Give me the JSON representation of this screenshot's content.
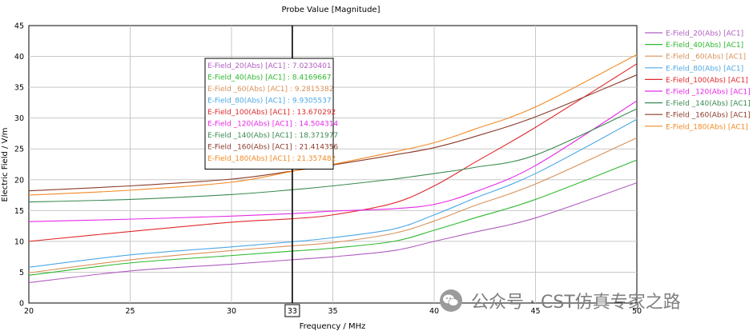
{
  "chart_data": {
    "type": "line",
    "title": "Probe Value [Magnitude]",
    "xlabel": "Frequency / MHz",
    "ylabel": "Electric Field / V/m",
    "xlim": [
      20,
      50
    ],
    "ylim": [
      0,
      45
    ],
    "x_ticks": [
      20,
      25,
      30,
      35,
      40,
      45,
      50
    ],
    "y_ticks": [
      0,
      5,
      10,
      15,
      20,
      25,
      30,
      35,
      40,
      45
    ],
    "grid": true,
    "legend_position": "right",
    "marker": {
      "x": 33,
      "label": "33"
    },
    "x": [
      20,
      25,
      30,
      33,
      35,
      38,
      40,
      42,
      45,
      50
    ],
    "series": [
      {
        "name": "E-Field_20(Abs) [AC1]",
        "color": "#b05cc0",
        "values": [
          3.3,
          5.2,
          6.3,
          7.02,
          7.5,
          8.5,
          10.0,
          11.5,
          13.8,
          19.5
        ],
        "marker_value": "7.0230401"
      },
      {
        "name": "E-Field_40(Abs) [AC1]",
        "color": "#2db82d",
        "values": [
          4.5,
          6.5,
          7.7,
          8.42,
          8.9,
          10.0,
          11.8,
          13.8,
          16.8,
          23.2
        ],
        "marker_value": "8.4169667"
      },
      {
        "name": "E-Field _60(Abs) [AC1]",
        "color": "#d8915a",
        "values": [
          4.9,
          7.0,
          8.5,
          9.28,
          9.8,
          11.3,
          13.3,
          15.8,
          19.3,
          26.8
        ],
        "marker_value": "9.2815382"
      },
      {
        "name": "E-Field_80(Abs) [AC1]",
        "color": "#4ca8e6",
        "values": [
          5.8,
          7.8,
          9.1,
          9.93,
          10.6,
          12.0,
          14.3,
          17.0,
          21.0,
          29.8
        ],
        "marker_value": "9.9305537"
      },
      {
        "name": "E-Field_100(Abs) [AC1]",
        "color": "#e0282a",
        "values": [
          10.0,
          11.6,
          13.1,
          13.67,
          14.3,
          16.2,
          19.0,
          22.8,
          28.5,
          38.8
        ],
        "marker_value": "13.670292"
      },
      {
        "name": "E-Field _120(Abs) [AC1]",
        "color": "#e629e6",
        "values": [
          13.2,
          13.6,
          14.1,
          14.5,
          14.9,
          15.3,
          16.0,
          18.0,
          22.3,
          32.8
        ],
        "marker_value": "14.504314"
      },
      {
        "name": "E-Field _140(Abs) [AC1]",
        "color": "#3a8a52",
        "values": [
          16.4,
          16.8,
          17.6,
          18.37,
          19.0,
          20.1,
          21.0,
          22.0,
          24.0,
          31.5
        ],
        "marker_value": "18.371977"
      },
      {
        "name": "E-Field _160(Abs) [AC1]",
        "color": "#8b3a2a",
        "values": [
          18.2,
          19.0,
          20.1,
          21.41,
          22.4,
          24.0,
          25.2,
          27.0,
          30.2,
          37.0
        ],
        "marker_value": "21.414356"
      },
      {
        "name": "E-Field_180(Abs) [AC1]",
        "color": "#f08a24",
        "values": [
          17.5,
          18.3,
          19.6,
          21.36,
          22.5,
          24.5,
          26.0,
          28.2,
          31.8,
          40.3
        ],
        "marker_value": "21.357482"
      }
    ]
  },
  "watermark": {
    "text": "公众号 · CST仿真专家之路"
  }
}
